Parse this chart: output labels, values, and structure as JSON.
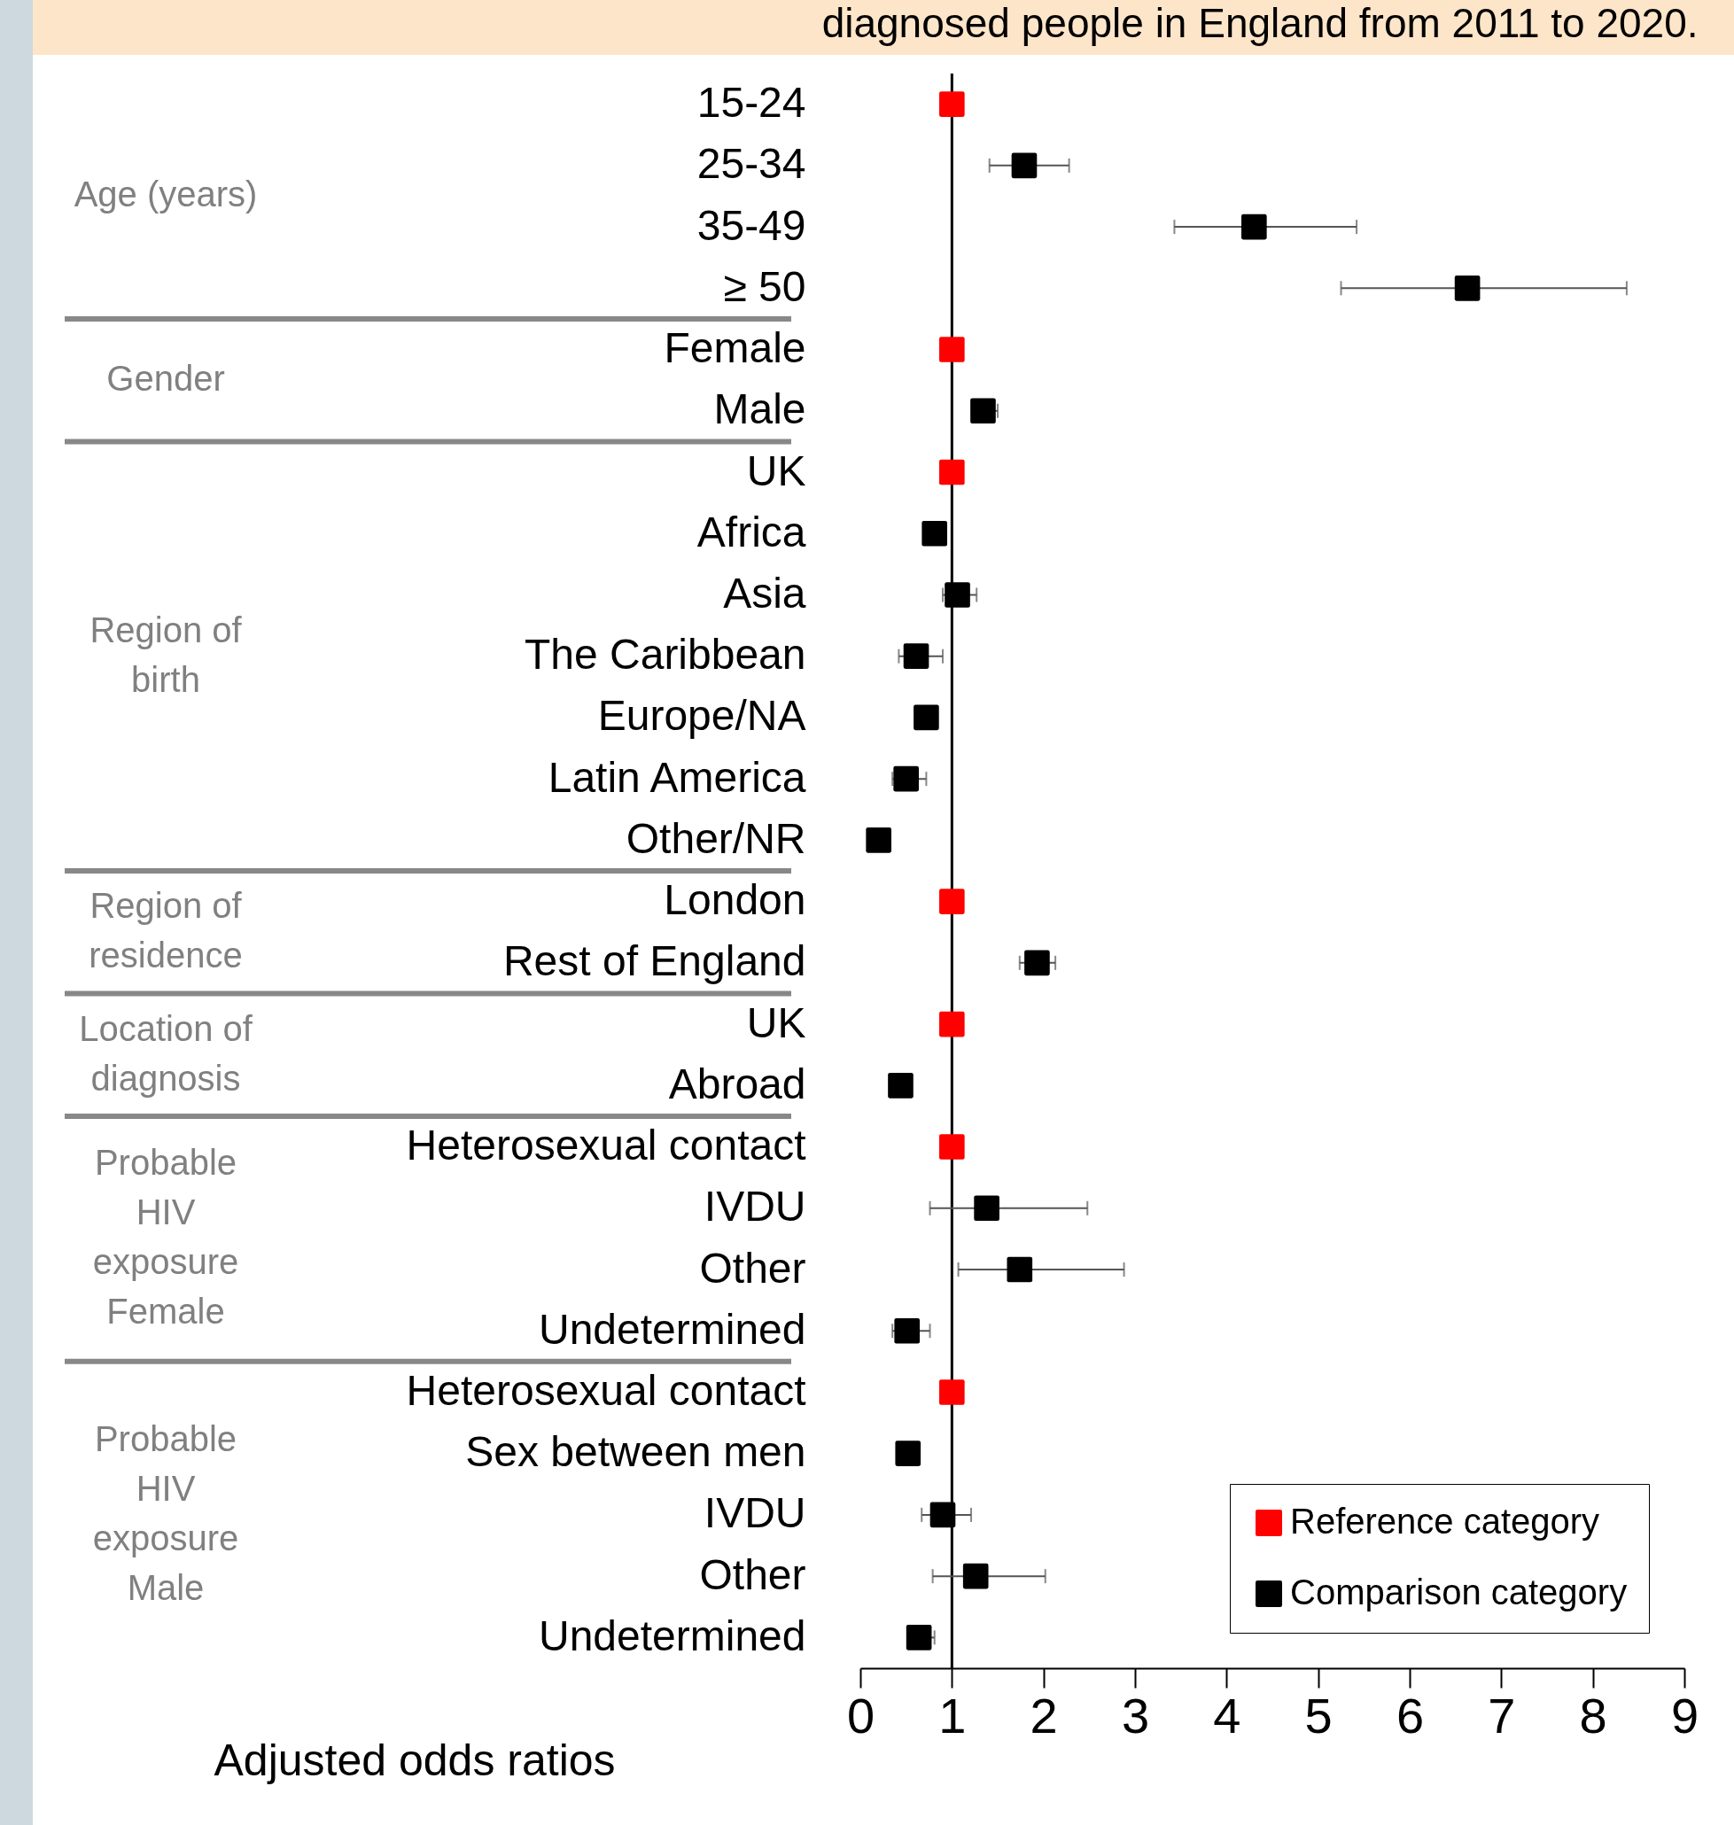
{
  "chart_data": {
    "type": "scatter",
    "title": "diagnosed people in England from 2011 to 2020.",
    "xlabel": "Adjusted odds ratios",
    "categories": [
      "15-24",
      "25-34",
      "35-49",
      "≥ 50",
      "Female",
      "Male",
      "UK",
      "Africa",
      "Asia",
      "The Caribbean",
      "Europe/NA",
      "Latin America",
      "Other/NR",
      "London",
      "Rest of England",
      "UK",
      "Abroad",
      "Heterosexual contact",
      "IVDU",
      "Other",
      "Undetermined",
      "Heterosexual contact",
      "Sex between men",
      "IVDU",
      "Other",
      "Undetermined"
    ],
    "series": [
      {
        "name": "Reference category",
        "color": "#ff0000",
        "values": [
          1,
          null,
          null,
          null,
          1,
          null,
          1,
          null,
          null,
          null,
          null,
          null,
          null,
          1,
          null,
          1,
          null,
          1,
          null,
          null,
          null,
          1,
          null,
          null,
          null,
          null
        ]
      },
      {
        "name": "Comparison category",
        "color": "#000000",
        "values": [
          null,
          1.79,
          4.3,
          6.63,
          null,
          1.34,
          null,
          0.81,
          1.06,
          0.61,
          0.72,
          0.5,
          0.2,
          null,
          1.93,
          null,
          0.44,
          null,
          1.38,
          1.74,
          0.51,
          null,
          0.52,
          0.9,
          1.26,
          0.64
        ],
        "errors": [
          null,
          [
            1.41,
            2.28
          ],
          [
            3.43,
            5.42
          ],
          [
            5.25,
            8.37
          ],
          null,
          [
            1.34,
            1.5
          ],
          null,
          null,
          [
            0.9,
            1.27
          ],
          [
            0.42,
            0.9
          ],
          null,
          [
            0.35,
            0.72
          ],
          null,
          null,
          [
            1.74,
            2.13
          ],
          null,
          null,
          null,
          [
            0.76,
            2.48
          ],
          [
            1.07,
            2.88
          ],
          [
            0.35,
            0.76
          ],
          null,
          null,
          [
            0.67,
            1.21
          ],
          [
            0.79,
            2.02
          ],
          [
            0.64,
            0.81
          ]
        ]
      }
    ],
    "annotations": [
      "Age (years)",
      "Gender",
      "Region of\nbirth",
      "Region of\nresidence",
      "Location of\ndiagnosis",
      "Probable\nHIV\nexposure\nFemale",
      "Probable\nHIV\nexposure\nMale"
    ],
    "ref_lines": [
      {
        "axis": "x",
        "value": 1,
        "color": "#000000"
      }
    ],
    "xlim": [
      0,
      9
    ],
    "xticks": [
      0,
      1,
      2,
      3,
      4,
      5,
      6,
      7,
      8,
      9
    ],
    "orientation": "horizontal",
    "marker": "square",
    "legend": "bottom right",
    "grid": false
  }
}
